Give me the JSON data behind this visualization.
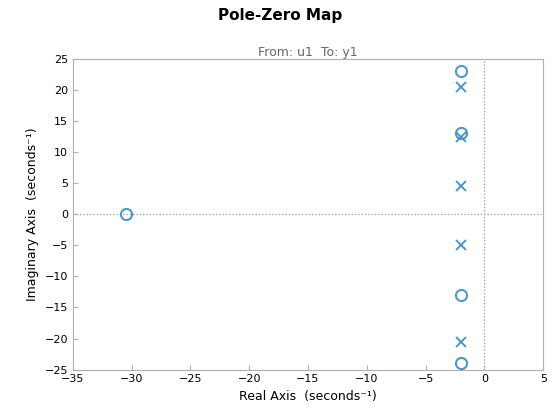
{
  "title": "Pole-Zero Map",
  "subtitle": "From: u1  To: y1",
  "xlabel": "Real Axis  (seconds⁻¹)",
  "ylabel": "Imaginary Axis  (seconds⁻¹)",
  "xlim": [
    -35,
    5
  ],
  "ylim": [
    -25,
    25
  ],
  "xticks": [
    -35,
    -30,
    -25,
    -20,
    -15,
    -10,
    -5,
    0,
    5
  ],
  "yticks": [
    -25,
    -20,
    -15,
    -10,
    -5,
    0,
    5,
    10,
    15,
    20,
    25
  ],
  "zeros_x": [
    -30.5,
    -2.0,
    -2.0,
    -2.0,
    -2.0
  ],
  "zeros_y": [
    0.0,
    23.0,
    13.0,
    -13.0,
    -24.0
  ],
  "poles_x": [
    -2.0,
    -2.0,
    -2.0,
    -2.0,
    -2.0
  ],
  "poles_y": [
    20.5,
    12.5,
    4.5,
    -5.0,
    -20.5
  ],
  "zero_color": "#4f97c5",
  "pole_color": "#4f97c5",
  "zero_markersize": 8,
  "pole_markersize": 7,
  "pole_markeredgewidth": 1.4,
  "vline_x": 0,
  "hline_y": 0,
  "ref_line_color": "#999999",
  "background_color": "#ffffff",
  "spine_color": "#b0b0b0",
  "title_fontsize": 11,
  "subtitle_fontsize": 9,
  "subtitle_color": "#666666",
  "axis_label_fontsize": 9,
  "tick_fontsize": 8
}
